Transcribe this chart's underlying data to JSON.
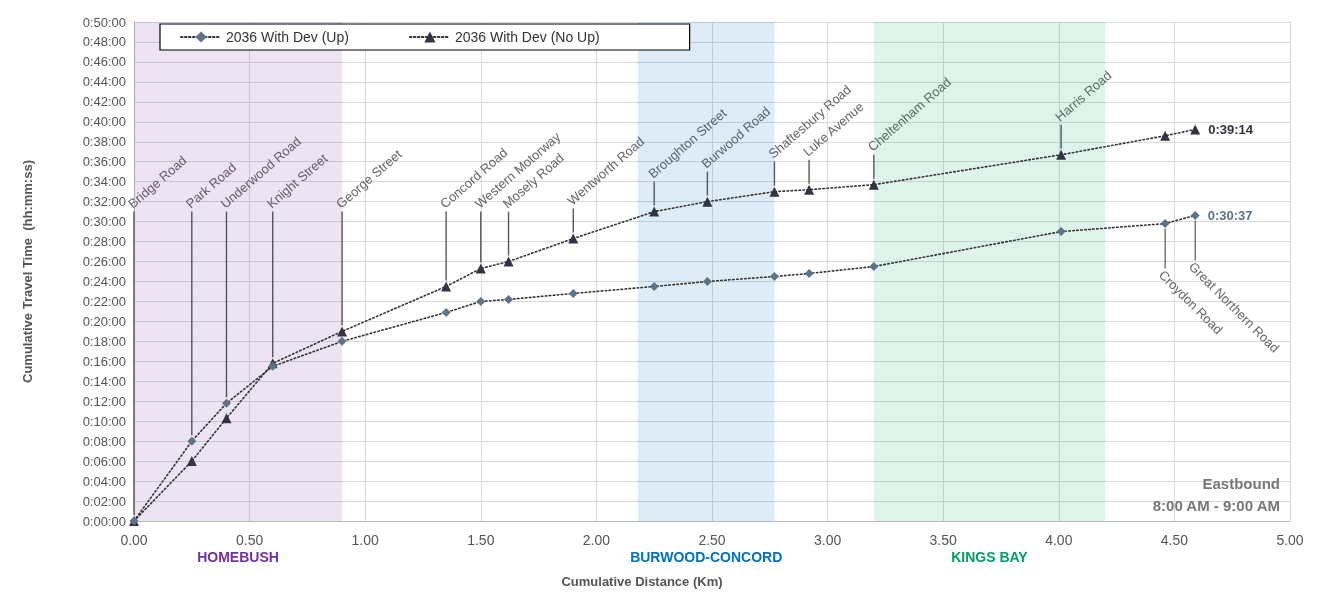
{
  "chart_data": {
    "type": "line",
    "xlabel": "Cumulative Distance (Km)",
    "ylabel": "Cumulative Travel Time  (hh:mm:ss)",
    "x": [
      0,
      0.25,
      0.4,
      0.6,
      0.9,
      1.35,
      1.5,
      1.62,
      1.9,
      2.25,
      2.48,
      2.77,
      2.92,
      3.2,
      4.01,
      4.46,
      4.59
    ],
    "series": [
      {
        "name": "2036 With Dev (Up)",
        "color": "#5d7388",
        "marker": "diamond",
        "values": [
          0,
          8,
          11.8,
          15.5,
          18,
          20.9,
          22,
          22.2,
          22.8,
          23.5,
          24,
          24.5,
          24.8,
          25.5,
          29,
          29.8,
          30.617
        ],
        "value_labels": [
          null,
          null,
          null,
          null,
          null,
          null,
          null,
          null,
          null,
          null,
          null,
          null,
          null,
          null,
          null,
          null,
          "0:30:37"
        ]
      },
      {
        "name": "2036 With Dev (No Up)",
        "color": "#333344",
        "marker": "triangle",
        "values": [
          0,
          6,
          10.3,
          15.8,
          19,
          23.5,
          25.3,
          26,
          28.3,
          31,
          32,
          33,
          33.2,
          33.7,
          36.7,
          38.6,
          39.233
        ],
        "value_labels": [
          null,
          null,
          null,
          null,
          null,
          null,
          null,
          null,
          null,
          null,
          null,
          null,
          null,
          null,
          null,
          null,
          "0:39:14"
        ]
      }
    ],
    "line_style": "dotted",
    "grid": true,
    "legend": "top left",
    "xlim": [
      0,
      5
    ],
    "xticks": [
      {
        "value": 0,
        "label": "0.00"
      },
      {
        "value": 0.5,
        "label": "0.50"
      },
      {
        "value": 1,
        "label": "1.00"
      },
      {
        "value": 1.5,
        "label": "1.50"
      },
      {
        "value": 2,
        "label": "2.00"
      },
      {
        "value": 2.5,
        "label": "2.50"
      },
      {
        "value": 3,
        "label": "3.00"
      },
      {
        "value": 3.5,
        "label": "3.50"
      },
      {
        "value": 4,
        "label": "4.00"
      },
      {
        "value": 4.5,
        "label": "4.50"
      },
      {
        "value": 5,
        "label": "5.00"
      }
    ],
    "ylim": [
      0,
      50
    ],
    "yticks": [
      {
        "value": 0,
        "label": "0:00:00"
      },
      {
        "value": 2,
        "label": "0:02:00"
      },
      {
        "value": 4,
        "label": "0:04:00"
      },
      {
        "value": 6,
        "label": "0:06:00"
      },
      {
        "value": 8,
        "label": "0:08:00"
      },
      {
        "value": 10,
        "label": "0:10:00"
      },
      {
        "value": 12,
        "label": "0:12:00"
      },
      {
        "value": 14,
        "label": "0:14:00"
      },
      {
        "value": 16,
        "label": "0:16:00"
      },
      {
        "value": 18,
        "label": "0:18:00"
      },
      {
        "value": 20,
        "label": "0:20:00"
      },
      {
        "value": 22,
        "label": "0:22:00"
      },
      {
        "value": 24,
        "label": "0:24:00"
      },
      {
        "value": 26,
        "label": "0:26:00"
      },
      {
        "value": 28,
        "label": "0:28:00"
      },
      {
        "value": 30,
        "label": "0:30:00"
      },
      {
        "value": 32,
        "label": "0:32:00"
      },
      {
        "value": 34,
        "label": "0:34:00"
      },
      {
        "value": 36,
        "label": "0:36:00"
      },
      {
        "value": 38,
        "label": "0:38:00"
      },
      {
        "value": 40,
        "label": "0:40:00"
      },
      {
        "value": 42,
        "label": "0:42:00"
      },
      {
        "value": 44,
        "label": "0:44:00"
      },
      {
        "value": 46,
        "label": "0:46:00"
      },
      {
        "value": 48,
        "label": "0:48:00"
      },
      {
        "value": 50,
        "label": "0:50:00"
      }
    ],
    "bands": [
      {
        "axis": "x",
        "from": 0,
        "to": 0.9,
        "label": "HOMEBUSH",
        "color": "#7030a0"
      },
      {
        "axis": "x",
        "from": 2.18,
        "to": 2.77,
        "label": "BURWOOD-CONCORD",
        "color": "#0070c0"
      },
      {
        "axis": "x",
        "from": 3.2,
        "to": 4.2,
        "label": "KINGS BAY",
        "color": "#00a060"
      }
    ],
    "annotations": [
      {
        "text": "Bridge Road",
        "x": 0
      },
      {
        "text": "Park Road",
        "x": 0.25,
        "y": 8
      },
      {
        "text": "Underwood Road",
        "x": 0.4,
        "y": 11.8
      },
      {
        "text": "Knight Street",
        "x": 0.6,
        "y": 15.8
      },
      {
        "text": "George Street",
        "x": 0.9,
        "y": 19
      },
      {
        "text": "Concord Road",
        "x": 1.35,
        "y": 23.5
      },
      {
        "text": "Western Motorway",
        "x": 1.5,
        "y": 25.3
      },
      {
        "text": "Mosely Road",
        "x": 1.62,
        "y": 26
      },
      {
        "text": "Wentworth Road",
        "x": 1.9,
        "y": 28.3
      },
      {
        "text": "Broughton Street",
        "x": 2.25,
        "y": 31
      },
      {
        "text": "Burwood Road",
        "x": 2.48,
        "y": 32
      },
      {
        "text": "Shaftesbury Road",
        "x": 2.77,
        "y": 33
      },
      {
        "text": "Luke Avenue",
        "x": 2.92,
        "y": 33.2
      },
      {
        "text": "Cheltenham Road",
        "x": 3.2,
        "y": 33.7
      },
      {
        "text": "Harris Road",
        "x": 4.01,
        "y": 36.7
      },
      {
        "text": "Croydon Road",
        "x": 4.46,
        "y": 29.8
      },
      {
        "text": "Great Northern Road",
        "x": 4.59,
        "y": 30.617
      },
      "Eastbound",
      "8:00 AM - 9:00 AM"
    ]
  }
}
